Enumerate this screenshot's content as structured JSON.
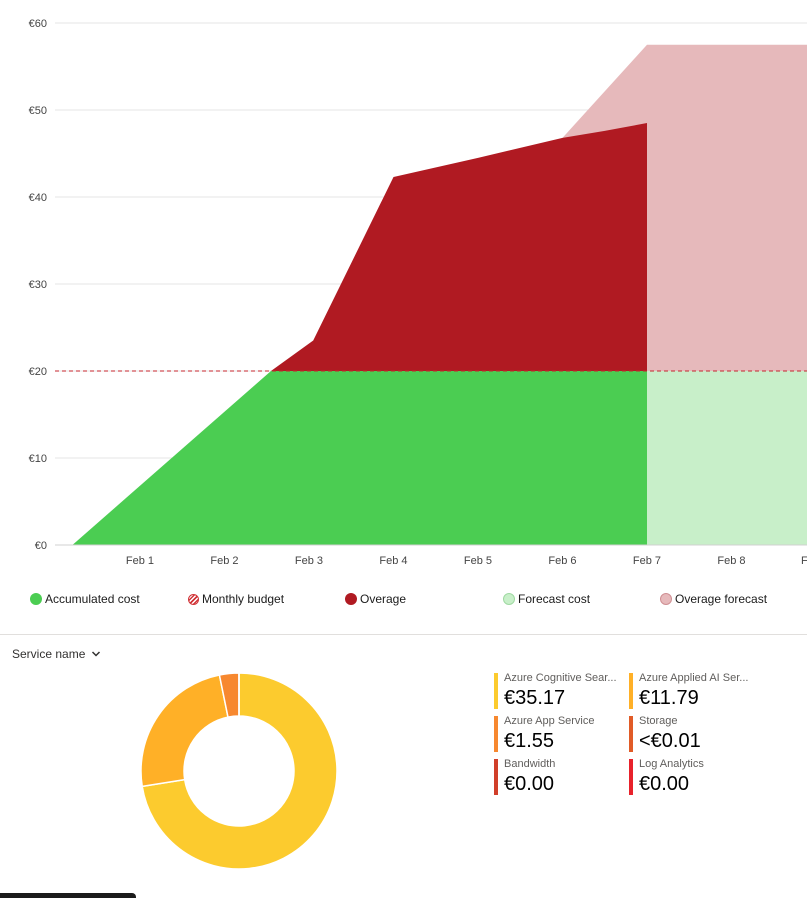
{
  "chart_data": [
    {
      "type": "area",
      "y_ticks": [
        "€0",
        "€10",
        "€20",
        "€30",
        "€40",
        "€50",
        "€60"
      ],
      "ylim": [
        0,
        60
      ],
      "x_ticks": [
        "Feb 1",
        "Feb 2",
        "Feb 3",
        "Feb 4",
        "Feb 5",
        "Feb 6",
        "Feb 7",
        "Feb 8",
        "F"
      ],
      "grid": true,
      "budget": 20,
      "series": [
        {
          "name": "Accumulated cost",
          "color": "#4bcd52",
          "points": [
            [
              0.2,
              0
            ],
            [
              2.55,
              20
            ],
            [
              7.0,
              20
            ]
          ]
        },
        {
          "name": "Overage",
          "color": "#b01a22",
          "points": [
            [
              2.55,
              20
            ],
            [
              3.05,
              23.5
            ],
            [
              4.0,
              42.3
            ],
            [
              5.0,
              44.5
            ],
            [
              6.0,
              46.8
            ],
            [
              6.5,
              47.6
            ],
            [
              7.0,
              48.5
            ]
          ]
        },
        {
          "name": "Forecast cost",
          "color": "#c8efc9",
          "points": [
            [
              7.0,
              20
            ],
            [
              9.0,
              20
            ]
          ]
        },
        {
          "name": "Overage forecast",
          "color": "#e6b9bb",
          "points": [
            [
              6.0,
              46.8
            ],
            [
              7.0,
              57.5
            ],
            [
              9.0,
              57.5
            ]
          ]
        }
      ],
      "legend": [
        {
          "label": "Accumulated cost",
          "color": "#4bcd52",
          "style": "solid"
        },
        {
          "label": "Monthly budget",
          "color": "#d13438",
          "style": "hatch"
        },
        {
          "label": "Overage",
          "color": "#b01a22",
          "style": "solid"
        },
        {
          "label": "Forecast cost",
          "color": "#c8efc9",
          "style": "light"
        },
        {
          "label": "Overage forecast",
          "color": "#e6b9bb",
          "style": "light"
        }
      ],
      "legend_placement": "bottom"
    },
    {
      "type": "pie",
      "subtype": "donut",
      "group_by": "Service name",
      "slices": [
        {
          "name": "Azure Cognitive Search",
          "value": 35.17,
          "color": "#fccb2e"
        },
        {
          "name": "Azure Applied AI Services",
          "value": 11.79,
          "color": "#ffb027"
        },
        {
          "name": "Azure App Service",
          "value": 1.55,
          "color": "#f7882f"
        },
        {
          "name": "Storage",
          "value": 0.004,
          "color": "#e15b27"
        },
        {
          "name": "Bandwidth",
          "value": 0,
          "color": "#d13f2a"
        },
        {
          "name": "Log Analytics",
          "value": 0,
          "color": "#e8222b"
        }
      ]
    }
  ],
  "breakdown": {
    "group_label": "Service name",
    "items": [
      {
        "name": "Azure Cognitive Sear...",
        "value": "€35.17",
        "color": "#fccb2e"
      },
      {
        "name": "Azure Applied AI Ser...",
        "value": "€11.79",
        "color": "#ffb027"
      },
      {
        "name": "Azure App Service",
        "value": "€1.55",
        "color": "#f7882f"
      },
      {
        "name": "Storage",
        "value": "<€0.01",
        "color": "#e15b27"
      },
      {
        "name": "Bandwidth",
        "value": "€0.00",
        "color": "#d13f2a"
      },
      {
        "name": "Log Analytics",
        "value": "€0.00",
        "color": "#e8222b"
      }
    ]
  }
}
